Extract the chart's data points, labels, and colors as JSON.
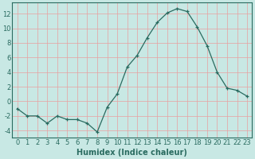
{
  "x": [
    0,
    1,
    2,
    3,
    4,
    5,
    6,
    7,
    8,
    9,
    10,
    11,
    12,
    13,
    14,
    15,
    16,
    17,
    18,
    19,
    20,
    21,
    22,
    23
  ],
  "y": [
    -1,
    -2,
    -2,
    -3,
    -2,
    -2.5,
    -2.5,
    -3,
    -4.2,
    -0.8,
    1.0,
    4.7,
    6.3,
    8.7,
    10.8,
    12.1,
    12.7,
    12.3,
    10.2,
    7.6,
    4.0,
    1.8,
    1.5,
    0.7
  ],
  "xlabel": "Humidex (Indice chaleur)",
  "background_color": "#c8e8e4",
  "grid_color": "#e8a0a0",
  "line_color": "#2a6b60",
  "marker_color": "#2a6b60",
  "ylim": [
    -5,
    13.5
  ],
  "xlim": [
    -0.5,
    23.5
  ],
  "yticks": [
    -4,
    -2,
    0,
    2,
    4,
    6,
    8,
    10,
    12
  ],
  "font_size": 6,
  "xlabel_fontsize": 7
}
